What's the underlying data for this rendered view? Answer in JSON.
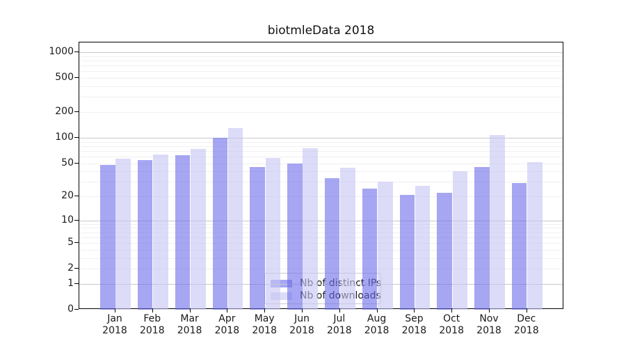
{
  "chart_data": {
    "type": "bar",
    "title": "biotmleData 2018",
    "x": [
      "Jan",
      "Feb",
      "Mar",
      "Apr",
      "May",
      "Jun",
      "Jul",
      "Aug",
      "Sep",
      "Oct",
      "Nov",
      "Dec"
    ],
    "x_year_label": "2018",
    "series": [
      {
        "name": "Nb of distinct IPs",
        "color": "rgba(107,107,233,0.6)",
        "values": [
          48,
          54,
          62,
          100,
          45,
          50,
          33,
          25,
          21,
          22,
          45,
          29
        ]
      },
      {
        "name": "Nb of downloads",
        "color": "rgba(197,197,243,0.6)",
        "values": [
          57,
          63,
          74,
          130,
          58,
          75,
          44,
          30,
          27,
          40,
          108,
          51
        ]
      }
    ],
    "yscale": "log10(value+1)",
    "yticks": [
      0,
      1,
      2,
      5,
      10,
      20,
      50,
      100,
      200,
      500,
      1000
    ],
    "ylim": [
      0,
      1300
    ],
    "grid": {
      "enabled": true,
      "major_values": [
        1,
        10,
        100,
        1000
      ],
      "minor_base_values": [
        2,
        3,
        4,
        5,
        6,
        7,
        8,
        9
      ],
      "minor_decades": [
        1,
        10,
        100
      ],
      "major_color": "#c9c9c9",
      "minor_color": "#f0f0f0"
    },
    "legend": {
      "position": "lower-center"
    },
    "colors": {
      "axis": "#000000",
      "text": "#1a1a1a",
      "background": "#ffffff"
    }
  }
}
